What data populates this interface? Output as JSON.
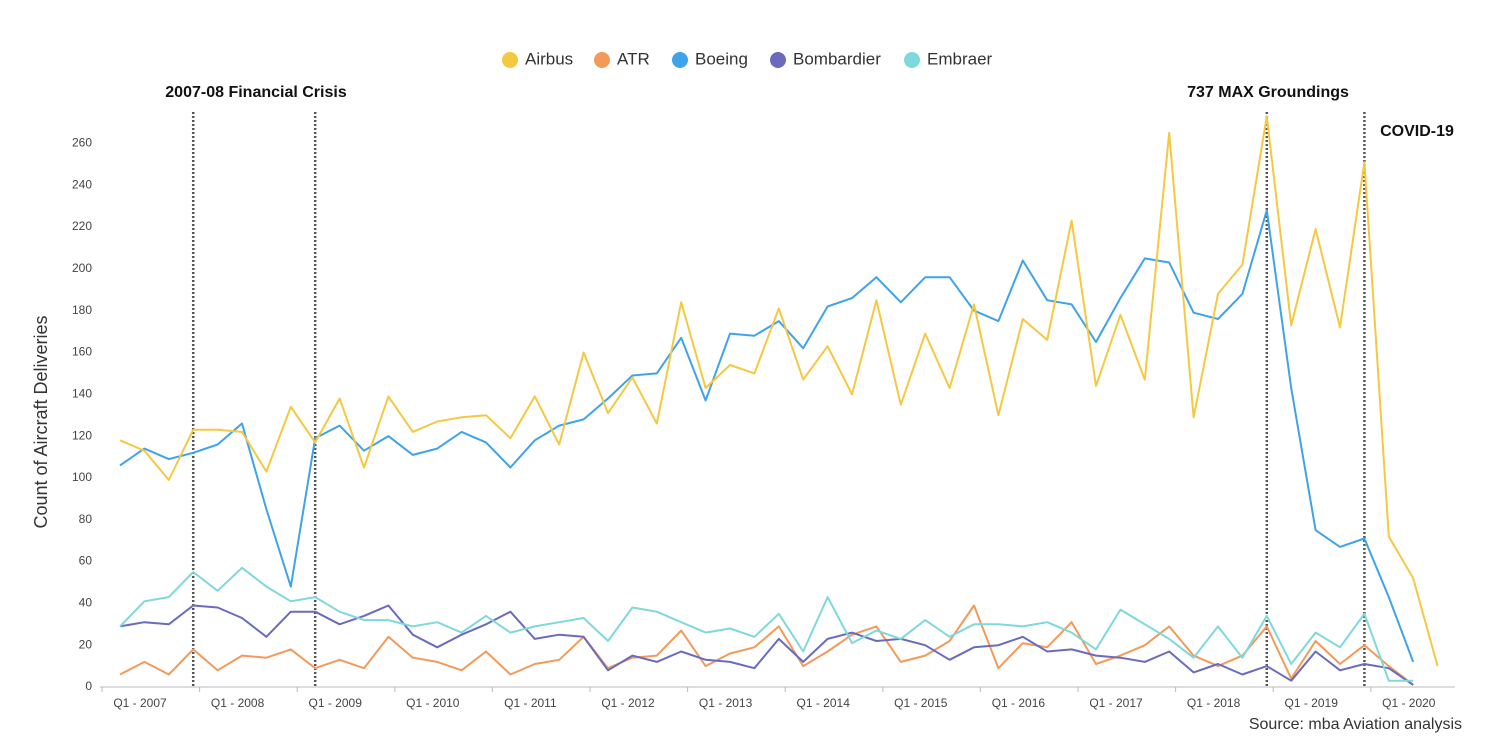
{
  "chart_data": {
    "type": "line",
    "y_label": "Count of Aircraft Deliveries",
    "source": "Source: mba Aviation analysis",
    "annotations": [
      "2007-08 Financial Crisis",
      "737 MAX Groundings",
      "COVID-19"
    ],
    "categories": [
      "Q1 - 2007",
      null,
      null,
      null,
      "Q1 - 2008",
      null,
      null,
      null,
      "Q1 - 2009",
      null,
      null,
      null,
      "Q1 - 2010",
      null,
      null,
      null,
      "Q1 - 2011",
      null,
      null,
      null,
      "Q1 - 2012",
      null,
      null,
      null,
      "Q1 - 2013",
      null,
      null,
      null,
      "Q1 - 2014",
      null,
      null,
      null,
      "Q1 - 2015",
      null,
      null,
      null,
      "Q1 - 2016",
      null,
      null,
      null,
      "Q1 - 2017",
      null,
      null,
      null,
      "Q1 - 2018",
      null,
      null,
      null,
      "Q1 - 2019",
      null,
      null,
      null,
      "Q1 - 2020",
      null,
      null
    ],
    "ylim": [
      0,
      275
    ],
    "yticks": [
      0,
      20,
      40,
      60,
      80,
      100,
      120,
      140,
      160,
      180,
      200,
      220,
      240,
      260
    ],
    "series": [
      {
        "name": "Airbus",
        "color": "#f5c842",
        "values": [
          118,
          113,
          99,
          123,
          123,
          122,
          103,
          134,
          117,
          138,
          105,
          139,
          122,
          127,
          129,
          130,
          119,
          139,
          116,
          160,
          131,
          148,
          126,
          184,
          143,
          154,
          150,
          181,
          147,
          163,
          140,
          185,
          135,
          169,
          143,
          183,
          130,
          176,
          166,
          223,
          144,
          178,
          147,
          265,
          129,
          188,
          202,
          273,
          173,
          219,
          172,
          251,
          72,
          52,
          10
        ]
      },
      {
        "name": "ATR",
        "color": "#f39a5b",
        "values": [
          6,
          12,
          6,
          18,
          8,
          15,
          14,
          18,
          9,
          13,
          9,
          24,
          14,
          12,
          8,
          17,
          6,
          11,
          13,
          24,
          9,
          14,
          15,
          27,
          10,
          16,
          19,
          29,
          10,
          17,
          25,
          29,
          12,
          15,
          22,
          39,
          9,
          21,
          19,
          31,
          11,
          15,
          20,
          29,
          15,
          10,
          15,
          29,
          4,
          22,
          11,
          20,
          10,
          1,
          null
        ]
      },
      {
        "name": "Boeing",
        "color": "#3fa3ea",
        "values": [
          106,
          114,
          109,
          112,
          116,
          126,
          85,
          48,
          119,
          125,
          113,
          120,
          111,
          114,
          122,
          117,
          105,
          118,
          125,
          128,
          138,
          149,
          150,
          167,
          137,
          169,
          168,
          175,
          162,
          182,
          186,
          196,
          184,
          196,
          196,
          180,
          175,
          204,
          185,
          183,
          165,
          186,
          205,
          203,
          179,
          176,
          188,
          228,
          143,
          75,
          67,
          71,
          43,
          12,
          null
        ]
      },
      {
        "name": "Bombardier",
        "color": "#6a6bbf",
        "values": [
          29,
          31,
          30,
          39,
          38,
          33,
          24,
          36,
          36,
          30,
          34,
          39,
          25,
          19,
          25,
          30,
          36,
          23,
          25,
          24,
          8,
          15,
          12,
          17,
          13,
          12,
          9,
          23,
          12,
          23,
          26,
          22,
          23,
          20,
          13,
          19,
          20,
          24,
          17,
          18,
          15,
          14,
          12,
          17,
          7,
          11,
          6,
          10,
          3,
          17,
          8,
          11,
          9,
          1,
          null
        ]
      },
      {
        "name": "Embraer",
        "color": "#7fd8dc",
        "values": [
          29,
          41,
          43,
          55,
          46,
          57,
          48,
          41,
          43,
          36,
          32,
          32,
          29,
          31,
          26,
          34,
          26,
          29,
          31,
          33,
          22,
          38,
          36,
          31,
          26,
          28,
          24,
          35,
          17,
          43,
          21,
          27,
          23,
          32,
          24,
          30,
          30,
          29,
          31,
          26,
          18,
          37,
          30,
          23,
          14,
          29,
          14,
          34,
          11,
          26,
          19,
          35,
          3,
          3,
          null
        ]
      }
    ]
  }
}
